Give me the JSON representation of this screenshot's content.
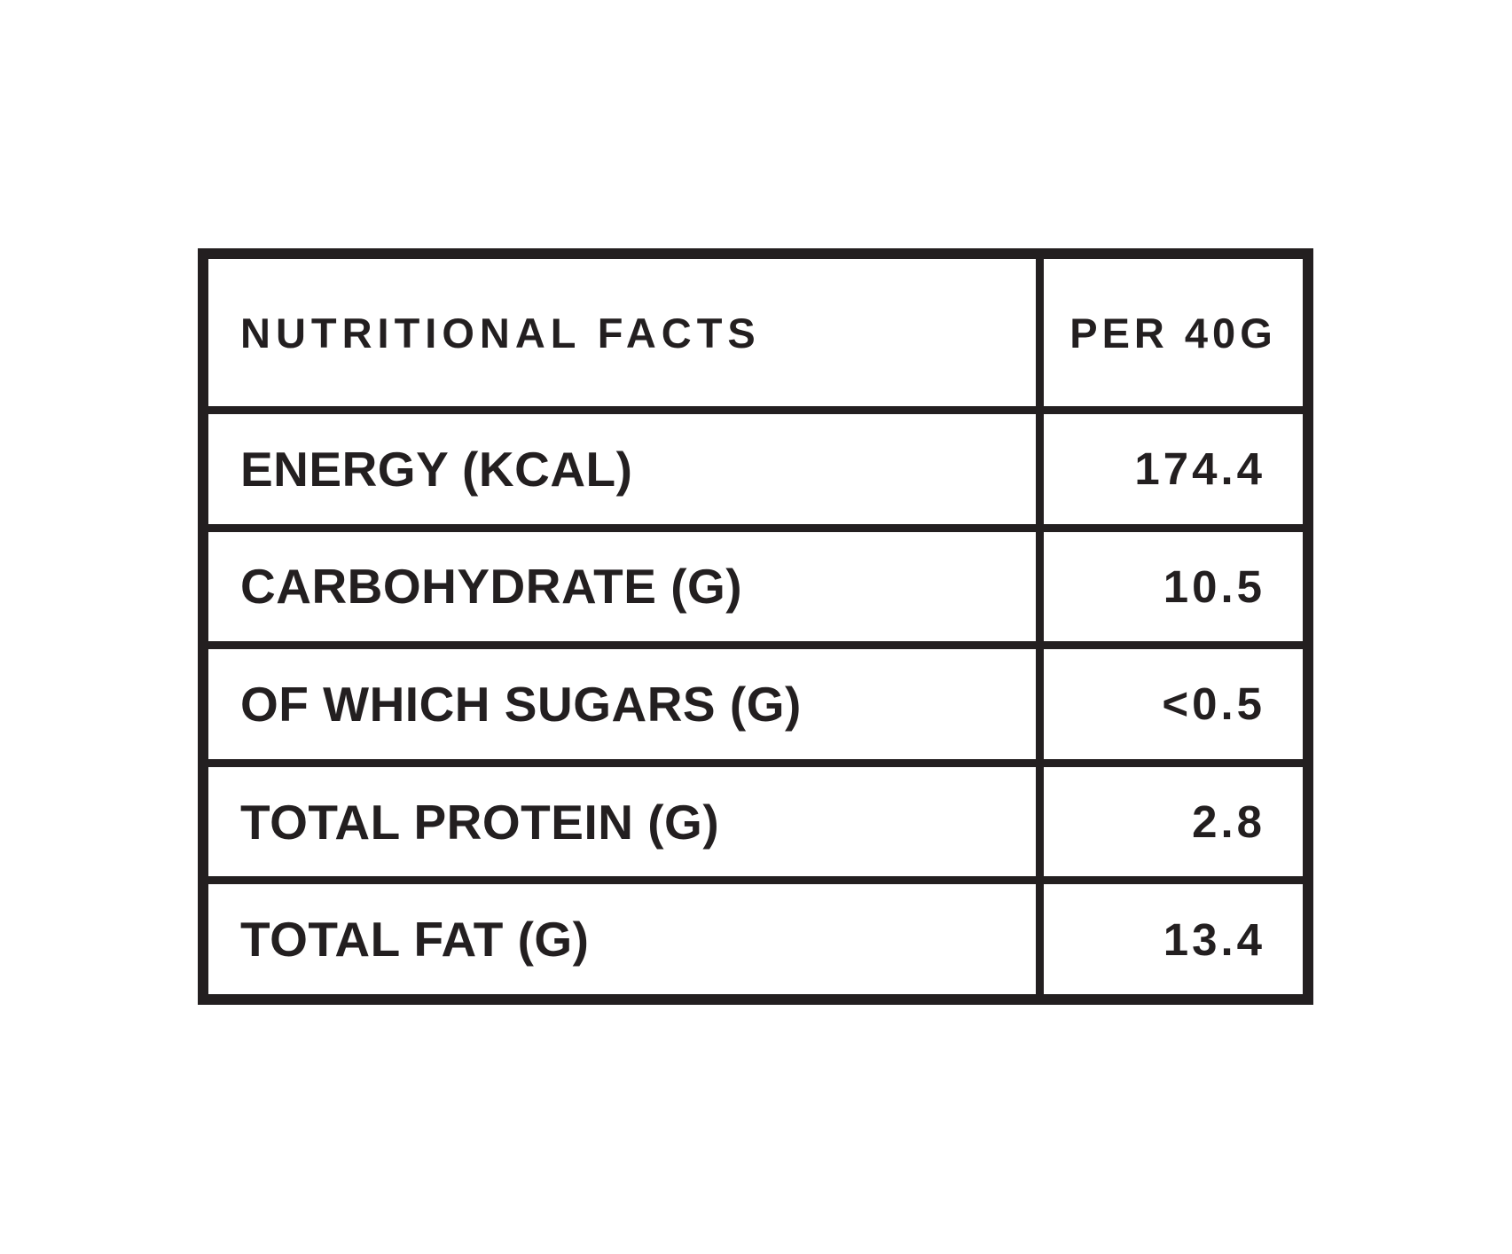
{
  "table": {
    "colors": {
      "ink": "#231f20",
      "background": "#ffffff"
    },
    "header": {
      "label": "NUTRITIONAL FACTS",
      "value": "PER 40G"
    },
    "rows": [
      {
        "id": "energy",
        "label": "ENERGY (KCAL)",
        "value": "174.4"
      },
      {
        "id": "carbohydrate",
        "label": "CARBOHYDRATE (G)",
        "value": "10.5"
      },
      {
        "id": "sugars",
        "label": "OF WHICH SUGARS (G)",
        "value": "<0.5"
      },
      {
        "id": "protein",
        "label": "TOTAL PROTEIN (G)",
        "value": "2.8"
      },
      {
        "id": "fat",
        "label": "TOTAL FAT (G)",
        "value": "13.4"
      }
    ]
  }
}
